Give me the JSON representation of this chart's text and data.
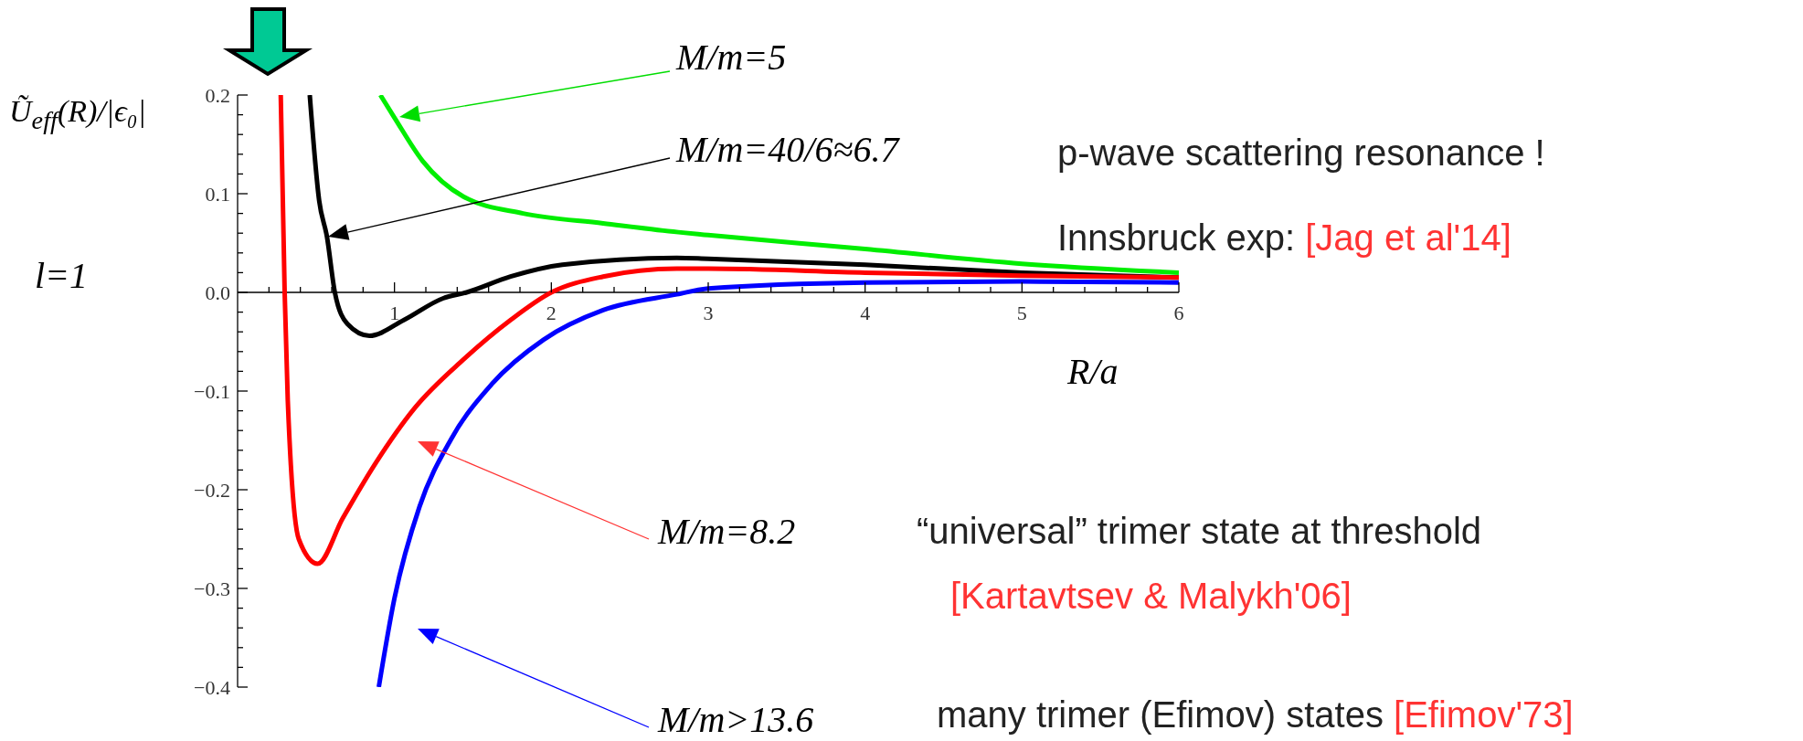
{
  "chart_data": {
    "type": "line",
    "xlabel": "R/a",
    "ylabel": "Ũ$_{eff}$(R)/|ϵ₀|",
    "xlim": [
      0,
      6
    ],
    "ylim": [
      -0.4,
      0.2
    ],
    "xticks": [
      {
        "value": 0.2,
        "label": null
      },
      {
        "value": 0.4,
        "label": null
      },
      {
        "value": 0.6,
        "label": null
      },
      {
        "value": 0.8,
        "label": null
      },
      1,
      {
        "value": 1.2,
        "label": null
      },
      {
        "value": 1.4,
        "label": null
      },
      {
        "value": 1.6,
        "label": null
      },
      {
        "value": 1.8,
        "label": null
      },
      2,
      {
        "value": 2.2,
        "label": null
      },
      {
        "value": 2.4,
        "label": null
      },
      {
        "value": 2.6,
        "label": null
      },
      {
        "value": 2.8,
        "label": null
      },
      3,
      {
        "value": 3.2,
        "label": null
      },
      {
        "value": 3.4,
        "label": null
      },
      {
        "value": 3.6,
        "label": null
      },
      {
        "value": 3.8,
        "label": null
      },
      4,
      {
        "value": 4.2,
        "label": null
      },
      {
        "value": 4.4,
        "label": null
      },
      {
        "value": 4.6,
        "label": null
      },
      {
        "value": 4.8,
        "label": null
      },
      5,
      {
        "value": 5.2,
        "label": null
      },
      {
        "value": 5.4,
        "label": null
      },
      {
        "value": 5.6,
        "label": null
      },
      {
        "value": 5.8,
        "label": null
      },
      6
    ],
    "yticks": [
      {
        "value": -0.4,
        "label": "−0.4"
      },
      {
        "value": -0.38,
        "label": null
      },
      {
        "value": -0.36,
        "label": null
      },
      {
        "value": -0.34,
        "label": null
      },
      {
        "value": -0.32,
        "label": null
      },
      {
        "value": -0.3,
        "label": "−0.3"
      },
      {
        "value": -0.28,
        "label": null
      },
      {
        "value": -0.26,
        "label": null
      },
      {
        "value": -0.24,
        "label": null
      },
      {
        "value": -0.22,
        "label": null
      },
      {
        "value": -0.2,
        "label": "−0.2"
      },
      {
        "value": -0.18,
        "label": null
      },
      {
        "value": -0.16,
        "label": null
      },
      {
        "value": -0.14,
        "label": null
      },
      {
        "value": -0.12,
        "label": null
      },
      {
        "value": -0.1,
        "label": "−0.1"
      },
      {
        "value": -0.08,
        "label": null
      },
      {
        "value": -0.06,
        "label": null
      },
      {
        "value": -0.04,
        "label": null
      },
      {
        "value": -0.02,
        "label": null
      },
      {
        "value": 0,
        "label": "0.0"
      },
      {
        "value": 0.02,
        "label": null
      },
      {
        "value": 0.04,
        "label": null
      },
      {
        "value": 0.06,
        "label": null
      },
      {
        "value": 0.08,
        "label": null
      },
      {
        "value": 0.1,
        "label": "0.1"
      },
      {
        "value": 0.12,
        "label": null
      },
      {
        "value": 0.14,
        "label": null
      },
      {
        "value": 0.16,
        "label": null
      },
      {
        "value": 0.18,
        "label": null
      },
      {
        "value": 0.2,
        "label": "0.2"
      }
    ],
    "series": [
      {
        "color": "#00ee00",
        "x": [
          0.91,
          1.0,
          1.18,
          1.44,
          1.82,
          2.33,
          2.81,
          3,
          4,
          5,
          6
        ],
        "values": [
          0.2,
          0.177,
          0.133,
          0.097,
          0.08,
          0.07,
          0.061,
          0.058,
          0.044,
          0.029,
          0.02
        ]
      },
      {
        "color": "#000000",
        "x": [
          0.46,
          0.52,
          0.57,
          0.62,
          0.7,
          0.84,
          1.06,
          1.31,
          1.46,
          1.74,
          2.07,
          2.8,
          3,
          4,
          5,
          6
        ],
        "values": [
          0.2,
          0.093,
          0.056,
          0,
          -0.032,
          -0.044,
          -0.028,
          -0.006,
          0,
          0.016,
          0.028,
          0.035,
          0.034,
          0.028,
          0.02,
          0.015
        ]
      },
      {
        "color": "#ff0000",
        "x": [
          0.275,
          0.3,
          0.32,
          0.39,
          0.51,
          0.67,
          0.88,
          1.13,
          1.44,
          1.74,
          2.0,
          2.33,
          2.8,
          3,
          4,
          5,
          6
        ],
        "values": [
          0.2,
          0,
          -0.11,
          -0.25,
          -0.275,
          -0.229,
          -0.173,
          -0.117,
          -0.068,
          -0.028,
          0,
          0.016,
          0.024,
          0.024,
          0.02,
          0.017,
          0.015
        ]
      },
      {
        "color": "#0000ff",
        "x": [
          0.9,
          1.0,
          1.16,
          1.36,
          1.62,
          1.95,
          2.33,
          2.8,
          3,
          4,
          5,
          6
        ],
        "values": [
          -0.4,
          -0.31,
          -0.217,
          -0.149,
          -0.093,
          -0.048,
          -0.018,
          -0.002,
          0.004,
          0.01,
          0.011,
          0.01
        ]
      }
    ],
    "annotations": [
      "M/m=5",
      "M/m=40/6≈6.7",
      "M/m=8.2",
      "M/m>13.6",
      "p-wave scattering resonance !",
      "Innsbruck exp: ",
      "[Jag et al'14]",
      "“universal” trimer state at threshold",
      "[Kartavtsev & Malykh'06]",
      "many trimer (Efimov) states ",
      "[Efimov'73]",
      "l=1"
    ]
  }
}
